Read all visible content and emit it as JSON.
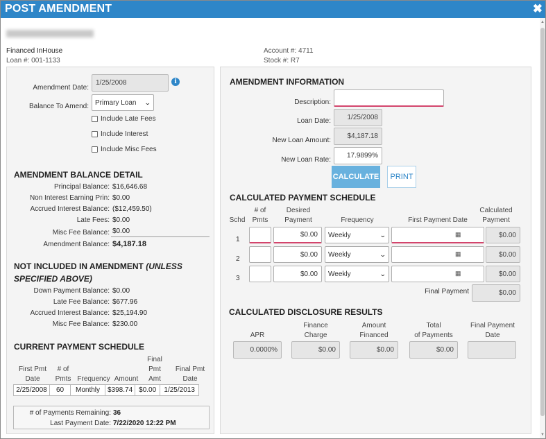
{
  "window": {
    "title": "POST AMENDMENT",
    "close_icon": "✖"
  },
  "header": {
    "customer_name": "",
    "financing_type": "Financed InHouse",
    "loan_number": "Loan #: 001-1133",
    "account": "Account #: 4711",
    "stock": "Stock #: R7"
  },
  "left": {
    "amendment_date_label": "Amendment Date:",
    "amendment_date": "1/25/2008",
    "balance_to_amend_label": "Balance To Amend:",
    "balance_to_amend": "Primary Loan",
    "checkboxes": [
      "Include Late Fees",
      "Include Interest",
      "Include Misc Fees"
    ],
    "balance_detail": {
      "title": "AMENDMENT BALANCE DETAIL",
      "rows": [
        {
          "label": "Principal Balance:",
          "value": "$16,646.68"
        },
        {
          "label": "Non Interest Earning Prin:",
          "value": "$0.00"
        },
        {
          "label": "Accrued Interest Balance:",
          "value": "($12,459.50)"
        },
        {
          "label": "Late Fees:",
          "value": "$0.00"
        },
        {
          "label": "Misc Fee Balance:",
          "value": "$0.00"
        },
        {
          "label": "Amendment Balance:",
          "value": "$4,187.18"
        }
      ]
    },
    "not_included": {
      "title_a": "NOT INCLUDED IN AMENDMENT ",
      "title_b": "(UNLESS",
      "title_c": "SPECIFIED ABOVE)",
      "rows": [
        {
          "label": "Down Payment Balance:",
          "value": "$0.00"
        },
        {
          "label": "Late Fee Balance:",
          "value": "$677.96"
        },
        {
          "label": "Accrued Interest Balance:",
          "value": "$25,194.90"
        },
        {
          "label": "Misc Fee Balance:",
          "value": "$230.00"
        }
      ]
    },
    "current_schedule": {
      "title": "CURRENT PAYMENT SCHEDULE",
      "headers": {
        "first_pmt_a": "First Pmt",
        "first_pmt_b": "Date",
        "num_pmts_a": "# of",
        "num_pmts_b": "Pmts",
        "frequency": "Frequency",
        "amount": "Amount",
        "final_amt_a": "Final",
        "final_amt_b": "Pmt",
        "final_amt_c": "Amt",
        "final_date_a": "Final Pmt",
        "final_date_b": "Date"
      },
      "row": [
        "2/25/2008",
        "60",
        "Monthly",
        "$398.74",
        "$0.00",
        "1/25/2013"
      ],
      "remaining_label": "# of Payments Remaining:",
      "remaining": "36",
      "last_payment_label": "Last Payment Date:",
      "last_payment": "7/22/2020 12:22 PM"
    }
  },
  "right": {
    "amend_info": {
      "title": "AMENDMENT INFORMATION",
      "description_label": "Description:",
      "description": "",
      "loan_date_label": "Loan Date:",
      "loan_date": "1/25/2008",
      "new_amount_label": "New Loan Amount:",
      "new_amount": "$4,187.18",
      "new_rate_label": "New Loan Rate:",
      "new_rate": "17.9899%",
      "calculate_label": "CALCULATE",
      "print_label": "PRINT"
    },
    "calc_schedule": {
      "title": "CALCULATED PAYMENT SCHEDULE",
      "h_schd": "Schd",
      "h_num_a": "# of",
      "h_num_b": "Pmts",
      "h_desired_a": "Desired",
      "h_desired_b": "Payment",
      "h_freq": "Frequency",
      "h_first": "First Payment Date",
      "h_calc_a": "Calculated",
      "h_calc_b": "Payment",
      "rows": [
        {
          "schd": "1",
          "num": "",
          "desired": "$0.00",
          "freq": "Weekly",
          "first": "",
          "calc": "$0.00"
        },
        {
          "schd": "2",
          "num": "",
          "desired": "$0.00",
          "freq": "Weekly",
          "first": "",
          "calc": "$0.00"
        },
        {
          "schd": "3",
          "num": "",
          "desired": "$0.00",
          "freq": "Weekly",
          "first": "",
          "calc": "$0.00"
        }
      ],
      "final_label": "Final Payment",
      "final": "$0.00"
    },
    "disclosure": {
      "title": "CALCULATED DISCLOSURE RESULTS",
      "h_apr": "APR",
      "h_fin_a": "Finance",
      "h_fin_b": "Charge",
      "h_amt_a": "Amount",
      "h_amt_b": "Financed",
      "h_tot_a": "Total",
      "h_tot_b": "of Payments",
      "h_fpd_a": "Final Payment",
      "h_fpd_b": "Date",
      "apr": "0.0000%",
      "finance_charge": "$0.00",
      "amount_financed": "$0.00",
      "total_payments": "$0.00",
      "final_date": ""
    }
  }
}
